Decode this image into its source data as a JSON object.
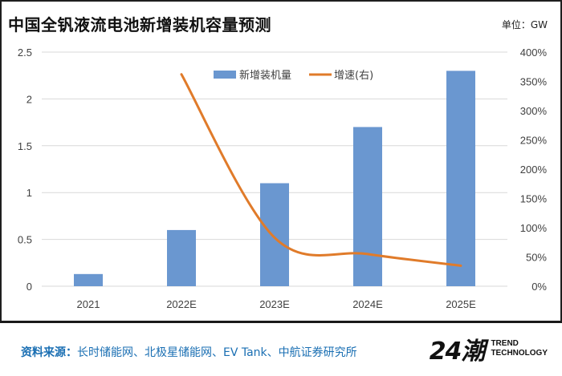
{
  "header": {
    "title": "中国全钒液流电池新增装机容量预测",
    "unit": "单位：GW"
  },
  "footer": {
    "source_label": "资料来源：",
    "source_text": "长时储能网、北极星储能网、EV Tank、中航证券研究所",
    "logo_number": "24潮",
    "logo_line1": "TREND",
    "logo_line2": "TECHNOLOGY"
  },
  "chart_data": {
    "type": "bar",
    "categories": [
      "2021",
      "2022E",
      "2023E",
      "2024E",
      "2025E"
    ],
    "series": [
      {
        "name": "新增装机量",
        "type": "bar",
        "axis": "left",
        "color": "#6a97d0",
        "values": [
          0.13,
          0.6,
          1.1,
          1.7,
          2.3
        ]
      },
      {
        "name": "增速(右)",
        "type": "line",
        "axis": "right",
        "color": "#e07b2a",
        "values": [
          null,
          3.62,
          0.83,
          0.55,
          0.35
        ]
      }
    ],
    "left_axis": {
      "ylim": [
        0,
        2.5
      ],
      "ticks": [
        "0",
        "0.5",
        "1",
        "1.5",
        "2",
        "2.5"
      ]
    },
    "right_axis": {
      "ylim": [
        0,
        4.0
      ],
      "ticks": [
        "0%",
        "50%",
        "100%",
        "150%",
        "200%",
        "250%",
        "300%",
        "350%",
        "400%"
      ]
    },
    "legend_position": "top-center",
    "grid": true
  }
}
